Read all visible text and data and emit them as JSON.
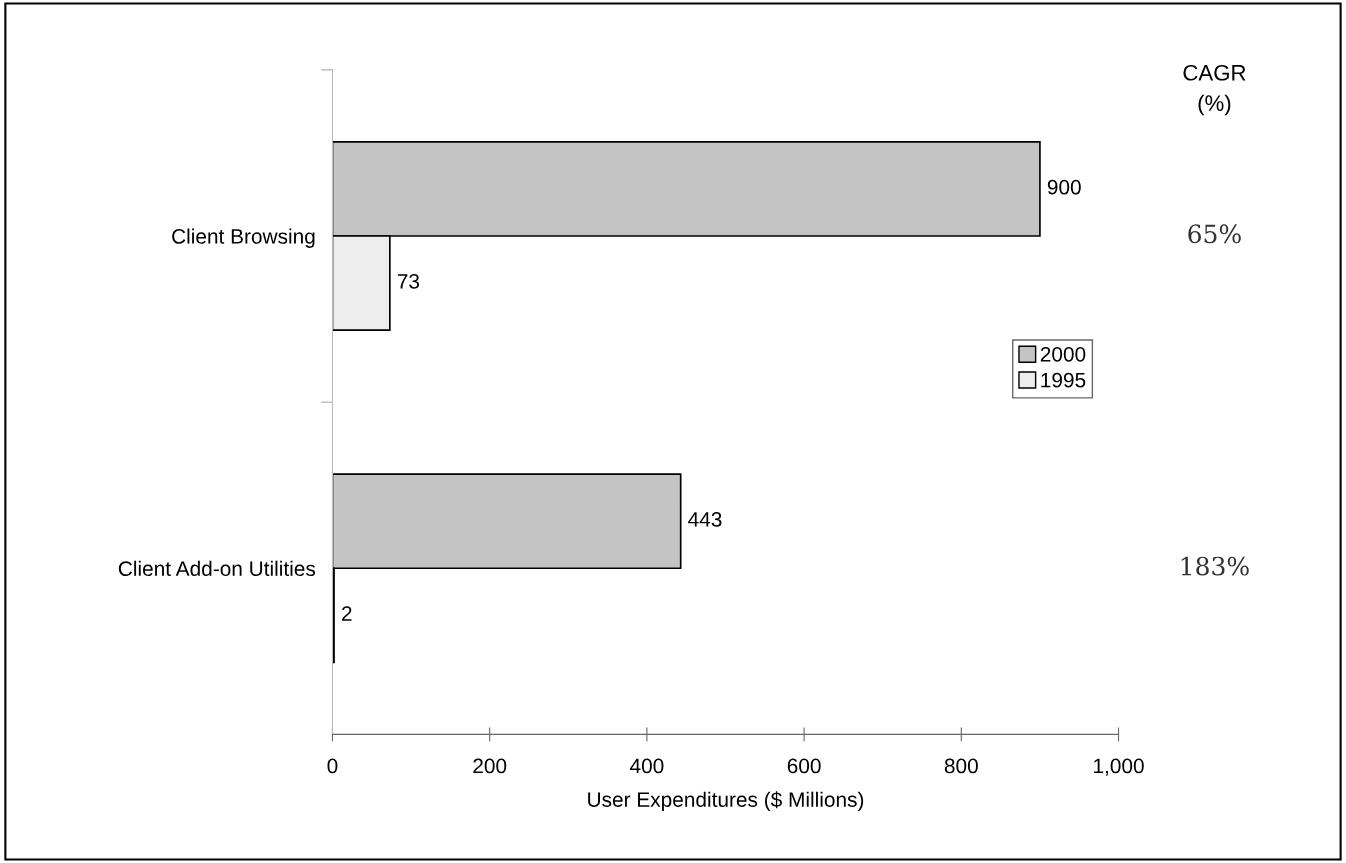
{
  "chart_data": {
    "type": "bar",
    "orientation": "horizontal",
    "categories": [
      "Client Browsing",
      "Client Add-on Utilities"
    ],
    "series": [
      {
        "name": "2000",
        "color": "#c4c4c4",
        "values": [
          900,
          443
        ]
      },
      {
        "name": "1995",
        "color": "#ededed",
        "values": [
          73,
          2
        ]
      }
    ],
    "xlabel": "User Expenditures ($ Millions)",
    "xlim": [
      0,
      1000
    ],
    "xticks": [
      0,
      200,
      400,
      600,
      800,
      {
        "value": 1000,
        "label": "1,000"
      }
    ],
    "data_labels": true,
    "legend": "right",
    "grid": false,
    "annotations": [
      "CAGR\n(%)",
      "65%",
      "183%"
    ]
  }
}
